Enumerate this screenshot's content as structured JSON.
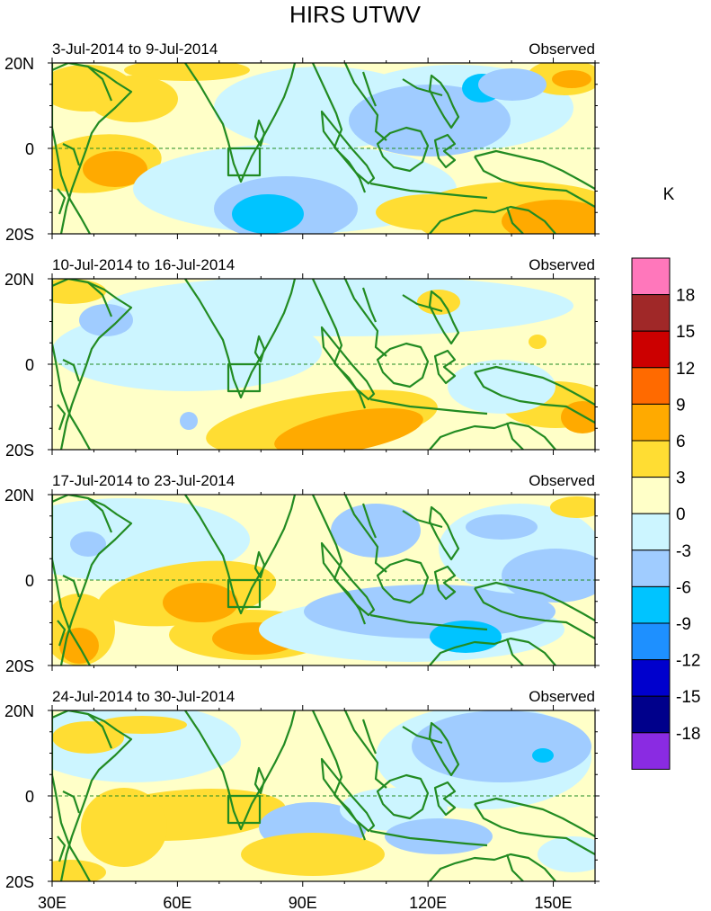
{
  "title": "HIRS UTWV",
  "units": "K",
  "panels": [
    {
      "date_range": "3-Jul-2014 to 9-Jul-2014",
      "label": "Observed"
    },
    {
      "date_range": "10-Jul-2014 to 16-Jul-2014",
      "label": "Observed"
    },
    {
      "date_range": "17-Jul-2014 to 23-Jul-2014",
      "label": "Observed"
    },
    {
      "date_range": "24-Jul-2014 to 30-Jul-2014",
      "label": "Observed"
    }
  ],
  "lat_labels": [
    "20N",
    "0",
    "20S"
  ],
  "lon_labels": [
    "30E",
    "60E",
    "90E",
    "120E",
    "150E"
  ],
  "colorbar": {
    "labels": [
      "18",
      "15",
      "12",
      "9",
      "6",
      "3",
      "0",
      "-3",
      "-6",
      "-9",
      "-12",
      "-15",
      "-18"
    ],
    "colors": [
      "#ff77bb",
      "#a02828",
      "#cc0000",
      "#ff6a00",
      "#ffaa00",
      "#ffdd33",
      "#ffffc8",
      "#ccf5ff",
      "#a0ccff",
      "#00c4ff",
      "#1e90ff",
      "#0000cd",
      "#00008b",
      "#8a2be2"
    ]
  },
  "map_colors": {
    "coast": "#228b22",
    "neutral": "#ffffc8",
    "pos3": "#ffdd33",
    "pos6": "#ffaa00",
    "neg3": "#ccf5ff",
    "neg6": "#a0ccff",
    "neg9": "#00c4ff",
    "neg12": "#1e90ff"
  }
}
